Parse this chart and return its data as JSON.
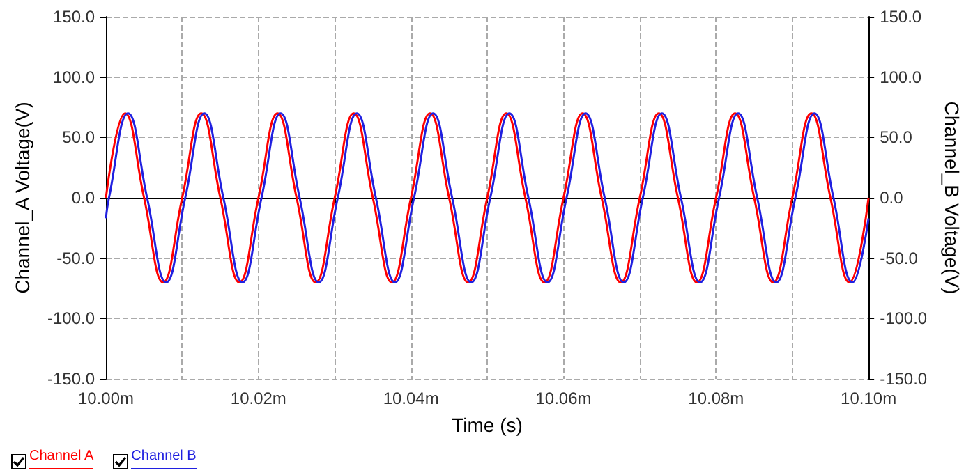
{
  "chart_data": {
    "type": "line",
    "xlabel": "Time (s)",
    "ylabel": "Channel_A Voltage(V)",
    "y2label": "Channel_B Voltage(V)",
    "xlim": [
      10,
      10.1
    ],
    "xticks": [
      {
        "value": 10,
        "label": "10.00m"
      },
      {
        "value": 10.01,
        "label": null
      },
      {
        "value": 10.02,
        "label": "10.02m"
      },
      {
        "value": 10.03,
        "label": null
      },
      {
        "value": 10.04,
        "label": "10.04m"
      },
      {
        "value": 10.05,
        "label": null
      },
      {
        "value": 10.06,
        "label": "10.06m"
      },
      {
        "value": 10.07,
        "label": null
      },
      {
        "value": 10.08,
        "label": "10.08m"
      },
      {
        "value": 10.09,
        "label": null
      },
      {
        "value": 10.1,
        "label": "10.10m"
      }
    ],
    "ylim": [
      -150,
      150
    ],
    "yticks": [
      {
        "value": -150,
        "label": "-150.0"
      },
      {
        "value": -100,
        "label": "-100.0"
      },
      {
        "value": -50,
        "label": "-50.0"
      },
      {
        "value": 0,
        "label": "0.0"
      },
      {
        "value": 50,
        "label": "50.0"
      },
      {
        "value": 100,
        "label": "100.0"
      },
      {
        "value": 150,
        "label": "150.0"
      }
    ],
    "y2lim": [
      -150,
      150
    ],
    "y2ticks": [
      {
        "value": -150,
        "label": "-150.0"
      },
      {
        "value": -100,
        "label": "-100.0"
      },
      {
        "value": -50,
        "label": "-50.0"
      },
      {
        "value": 0,
        "label": "0.0"
      },
      {
        "value": 50,
        "label": "50.0"
      },
      {
        "value": 100,
        "label": "100.0"
      },
      {
        "value": 150,
        "label": "150.0"
      }
    ],
    "grid": true,
    "legend": "bottom left",
    "series": [
      {
        "name": "Channel A",
        "color": "#ff0000",
        "x": [
          10,
          10.0025,
          10.005,
          10.0075,
          10.01,
          10.0125,
          10.015,
          10.0175,
          10.02,
          10.0225,
          10.025,
          10.0275,
          10.03,
          10.0325,
          10.035,
          10.0375,
          10.04,
          10.0425,
          10.045,
          10.0475,
          10.05,
          10.0525,
          10.055,
          10.0575,
          10.06,
          10.0625,
          10.065,
          10.0675,
          10.07,
          10.0725,
          10.075,
          10.0775,
          10.08,
          10.0825,
          10.085,
          10.0875,
          10.09,
          10.0925,
          10.095,
          10.0975,
          10.1
        ],
        "values": [
          0,
          70,
          0,
          -70,
          0,
          70,
          0,
          -70,
          0,
          70,
          0,
          -70,
          0,
          70,
          0,
          -70,
          0,
          70,
          0,
          -70,
          0,
          70,
          0,
          -70,
          0,
          70,
          0,
          -70,
          0,
          70,
          0,
          -70,
          0,
          70,
          0,
          -70,
          0,
          70,
          0,
          -70,
          0
        ]
      },
      {
        "name": "Channel B",
        "color": "#2020e0",
        "axis": "y2",
        "x": [
          10,
          10.0004,
          10.0029,
          10.0054,
          10.0079,
          10.0104,
          10.0129,
          10.0154,
          10.0179,
          10.0204,
          10.0229,
          10.0254,
          10.0279,
          10.0304,
          10.0329,
          10.0354,
          10.0379,
          10.0404,
          10.0429,
          10.0454,
          10.0479,
          10.0504,
          10.0529,
          10.0554,
          10.0579,
          10.0604,
          10.0629,
          10.0654,
          10.0679,
          10.0704,
          10.0729,
          10.0754,
          10.0779,
          10.0804,
          10.0829,
          10.0854,
          10.0879,
          10.0904,
          10.0929,
          10.0954,
          10.0979,
          10.1
        ],
        "values": [
          -17,
          0,
          70,
          0,
          -70,
          0,
          70,
          0,
          -70,
          0,
          70,
          0,
          -70,
          0,
          70,
          0,
          -70,
          0,
          70,
          0,
          -70,
          0,
          70,
          0,
          -70,
          0,
          70,
          0,
          -70,
          0,
          70,
          0,
          -70,
          0,
          70,
          0,
          -70,
          0,
          70,
          0,
          -70,
          -17
        ]
      }
    ]
  }
}
